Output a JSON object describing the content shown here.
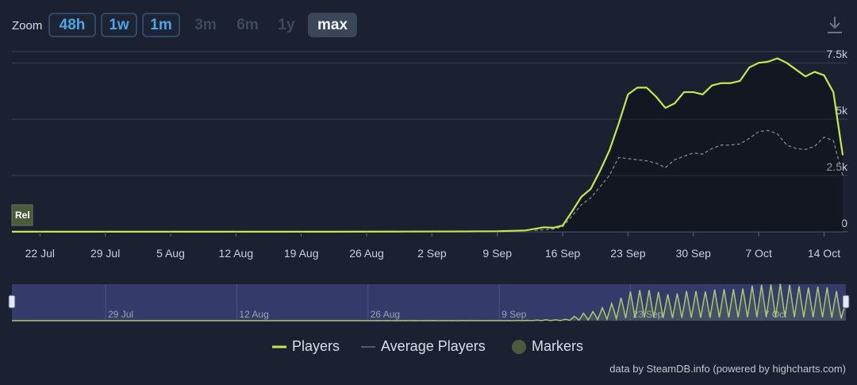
{
  "toolbar": {
    "zoom_label": "Zoom",
    "buttons": [
      {
        "label": "48h",
        "state": "enabled"
      },
      {
        "label": "1w",
        "state": "enabled"
      },
      {
        "label": "1m",
        "state": "enabled"
      },
      {
        "label": "3m",
        "state": "disabled"
      },
      {
        "label": "6m",
        "state": "disabled"
      },
      {
        "label": "1y",
        "state": "disabled"
      },
      {
        "label": "max",
        "state": "active"
      }
    ],
    "download_icon": "download-icon"
  },
  "chart_data": {
    "type": "line",
    "x_axis_labels": [
      "22 Jul",
      "29 Jul",
      "5 Aug",
      "12 Aug",
      "19 Aug",
      "26 Aug",
      "2 Sep",
      "9 Sep",
      "16 Sep",
      "23 Sep",
      "30 Sep",
      "7 Oct",
      "14 Oct"
    ],
    "y_axis_labels": [
      "0",
      "2.5k",
      "5k",
      "7.5k"
    ],
    "ylim": [
      0,
      8000
    ],
    "grid": true,
    "marker": {
      "label": "Rel",
      "x": "2024-07-19"
    },
    "series": [
      {
        "name": "Players",
        "color": "#c6e84a",
        "points": [
          [
            "2024-07-19",
            5
          ],
          [
            "2024-07-25",
            5
          ],
          [
            "2024-08-01",
            5
          ],
          [
            "2024-08-08",
            5
          ],
          [
            "2024-08-15",
            5
          ],
          [
            "2024-08-22",
            5
          ],
          [
            "2024-08-29",
            10
          ],
          [
            "2024-09-05",
            15
          ],
          [
            "2024-09-09",
            25
          ],
          [
            "2024-09-12",
            60
          ],
          [
            "2024-09-14",
            200
          ],
          [
            "2024-09-15",
            180
          ],
          [
            "2024-09-16",
            280
          ],
          [
            "2024-09-17",
            900
          ],
          [
            "2024-09-18",
            1550
          ],
          [
            "2024-09-19",
            1900
          ],
          [
            "2024-09-20",
            2700
          ],
          [
            "2024-09-21",
            3600
          ],
          [
            "2024-09-22",
            4800
          ],
          [
            "2024-09-23",
            6100
          ],
          [
            "2024-09-24",
            6400
          ],
          [
            "2024-09-25",
            6400
          ],
          [
            "2024-09-26",
            6000
          ],
          [
            "2024-09-27",
            5500
          ],
          [
            "2024-09-28",
            5700
          ],
          [
            "2024-09-29",
            6200
          ],
          [
            "2024-09-30",
            6200
          ],
          [
            "2024-10-01",
            6100
          ],
          [
            "2024-10-02",
            6500
          ],
          [
            "2024-10-03",
            6600
          ],
          [
            "2024-10-04",
            6600
          ],
          [
            "2024-10-05",
            6700
          ],
          [
            "2024-10-06",
            7300
          ],
          [
            "2024-10-07",
            7500
          ],
          [
            "2024-10-08",
            7550
          ],
          [
            "2024-10-09",
            7700
          ],
          [
            "2024-10-10",
            7500
          ],
          [
            "2024-10-11",
            7200
          ],
          [
            "2024-10-12",
            6900
          ],
          [
            "2024-10-13",
            7100
          ],
          [
            "2024-10-14",
            6950
          ],
          [
            "2024-10-15",
            6200
          ],
          [
            "2024-10-16",
            3400
          ]
        ]
      },
      {
        "name": "Average Players",
        "color": "#8a8f98",
        "points": [
          [
            "2024-09-13",
            60
          ],
          [
            "2024-09-15",
            120
          ],
          [
            "2024-09-16",
            220
          ],
          [
            "2024-09-17",
            700
          ],
          [
            "2024-09-18",
            1200
          ],
          [
            "2024-09-19",
            1500
          ],
          [
            "2024-09-20",
            2000
          ],
          [
            "2024-09-21",
            2500
          ],
          [
            "2024-09-22",
            3300
          ],
          [
            "2024-09-23",
            3250
          ],
          [
            "2024-09-24",
            3200
          ],
          [
            "2024-09-25",
            3150
          ],
          [
            "2024-09-26",
            3050
          ],
          [
            "2024-09-27",
            2850
          ],
          [
            "2024-09-28",
            3200
          ],
          [
            "2024-09-29",
            3350
          ],
          [
            "2024-09-30",
            3500
          ],
          [
            "2024-10-01",
            3450
          ],
          [
            "2024-10-02",
            3700
          ],
          [
            "2024-10-03",
            3850
          ],
          [
            "2024-10-04",
            3850
          ],
          [
            "2024-10-05",
            3900
          ],
          [
            "2024-10-06",
            4150
          ],
          [
            "2024-10-07",
            4450
          ],
          [
            "2024-10-08",
            4500
          ],
          [
            "2024-10-09",
            4350
          ],
          [
            "2024-10-10",
            3850
          ],
          [
            "2024-10-11",
            3700
          ],
          [
            "2024-10-12",
            3650
          ],
          [
            "2024-10-13",
            3800
          ],
          [
            "2024-10-14",
            4200
          ],
          [
            "2024-10-15",
            4050
          ],
          [
            "2024-10-16",
            2500
          ]
        ]
      }
    ],
    "navigator": {
      "x_labels": [
        "29 Jul",
        "12 Aug",
        "26 Aug",
        "9 Sep",
        "23 Sep",
        "7 Oct"
      ]
    }
  },
  "legend": [
    {
      "label": "Players",
      "kind": "line",
      "color": "#c6e84a"
    },
    {
      "label": "Average Players",
      "kind": "dash",
      "color": "#8a8f98"
    },
    {
      "label": "Markers",
      "kind": "dot",
      "color": "#4a5a3a"
    }
  ],
  "credits": "data by SteamDB.info (powered by highcharts.com)"
}
